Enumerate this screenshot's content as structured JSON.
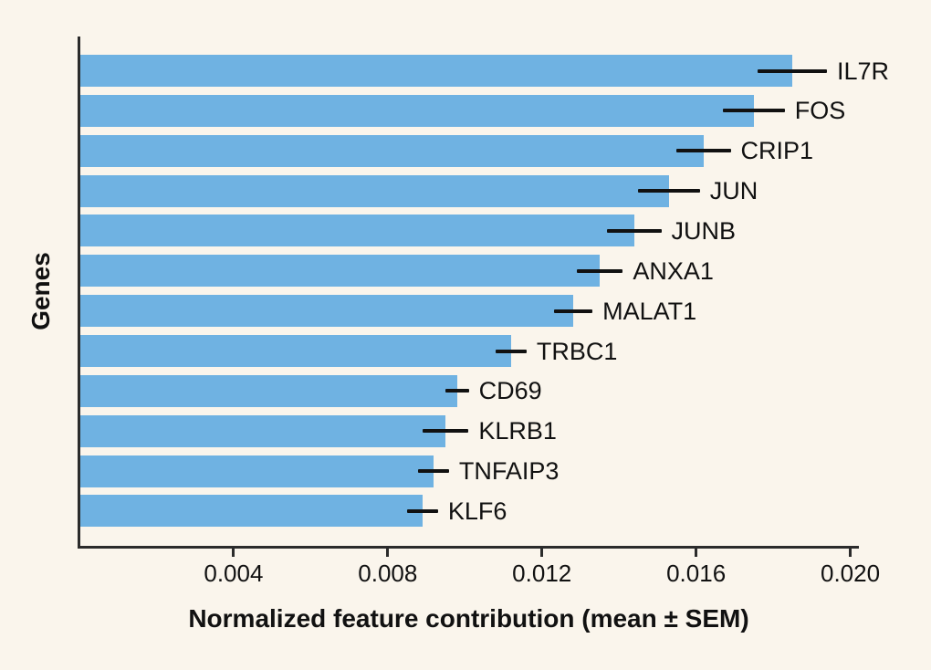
{
  "figure": {
    "background_color": "#FAF5EC"
  },
  "chart_data": {
    "type": "bar",
    "orientation": "horizontal",
    "title": "",
    "xlabel": "Normalized feature contribution (mean ± SEM)",
    "ylabel": "Genes",
    "categories": [
      "IL7R",
      "FOS",
      "CRIP1",
      "JUN",
      "JUNB",
      "ANXA1",
      "MALAT1",
      "TRBC1",
      "CD69",
      "KLRB1",
      "TNFAIP3",
      "KLF6"
    ],
    "series": [
      {
        "name": "mean",
        "values": [
          0.0185,
          0.0175,
          0.0162,
          0.0153,
          0.0144,
          0.0135,
          0.0128,
          0.0112,
          0.0098,
          0.0095,
          0.0092,
          0.0089
        ]
      },
      {
        "name": "sem",
        "values": [
          0.0009,
          0.0008,
          0.0007,
          0.0008,
          0.0007,
          0.0006,
          0.0005,
          0.0004,
          0.0003,
          0.0006,
          0.0004,
          0.0004
        ]
      }
    ],
    "xlim": [
      0,
      0.0202
    ],
    "xticks": [
      0.004,
      0.008,
      0.012,
      0.016,
      0.02
    ],
    "xtick_labels": [
      "0.004",
      "0.008",
      "0.012",
      "0.016",
      "0.020"
    ],
    "grid": false,
    "legend_position": "none",
    "colors": {
      "bar": "#6FB2E2",
      "error_bar": "#111111",
      "axis": "#2B2B2B",
      "text": "#111111",
      "background": "#FAF5EC"
    }
  }
}
